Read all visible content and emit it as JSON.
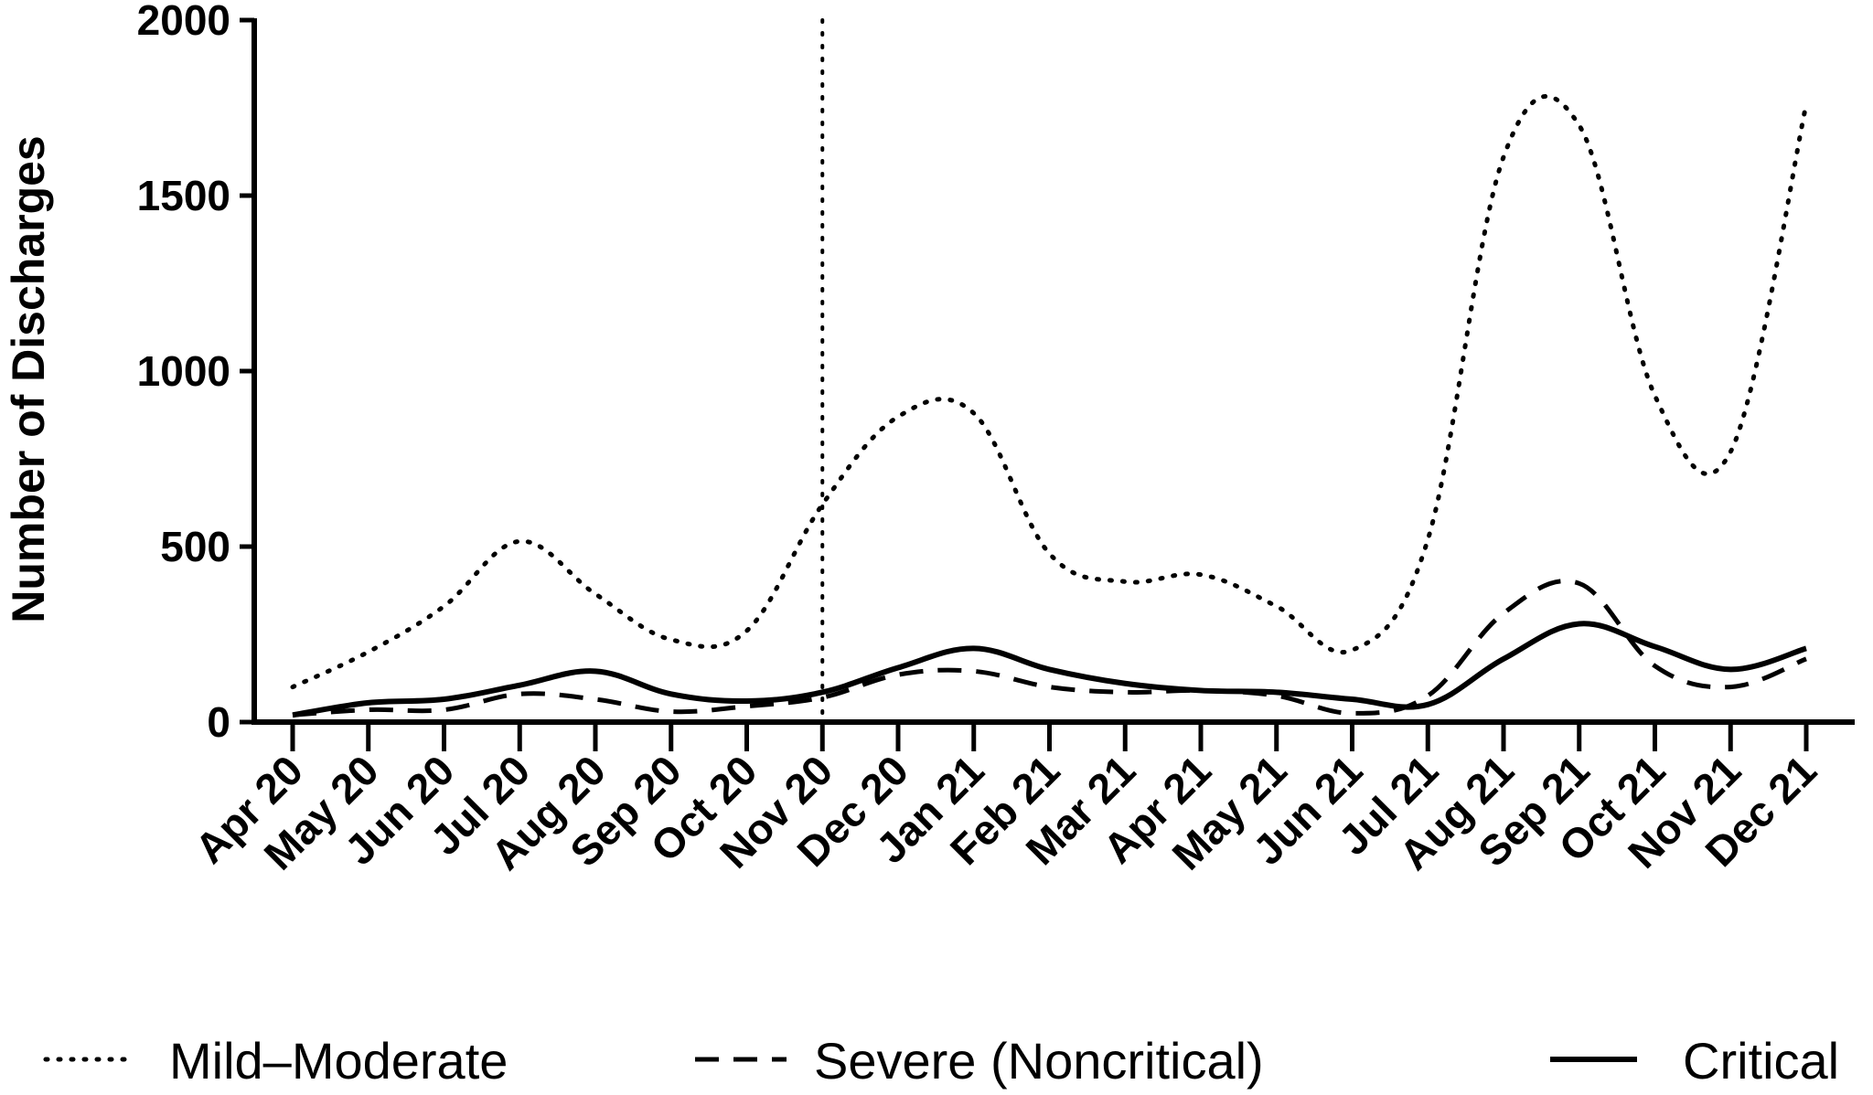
{
  "chart_data": {
    "type": "line",
    "ylabel": "Number of Discharges",
    "xlabel": "",
    "ylim": [
      0,
      2000
    ],
    "yticks": [
      0,
      500,
      1000,
      1500,
      2000
    ],
    "categories": [
      "Apr 20",
      "May 20",
      "Jun 20",
      "Jul 20",
      "Aug 20",
      "Sep 20",
      "Oct 20",
      "Nov 20",
      "Dec 20",
      "Jan 21",
      "Feb 21",
      "Mar 21",
      "Apr 21",
      "May 21",
      "Jun 21",
      "Jul 21",
      "Aug 21",
      "Sep 21",
      "Oct 21",
      "Nov 21",
      "Dec 21"
    ],
    "reference_line": {
      "category": "Nov 20",
      "style": "dotted"
    },
    "grid": false,
    "legend_position": "bottom",
    "series": [
      {
        "name": "Mild–Moderate",
        "style": "dotted",
        "values": [
          100,
          200,
          330,
          515,
          365,
          235,
          260,
          620,
          870,
          880,
          480,
          400,
          420,
          330,
          205,
          520,
          1610,
          1700,
          930,
          770,
          1760
        ]
      },
      {
        "name": "Severe (Noncritical)",
        "style": "dashed",
        "values": [
          20,
          35,
          35,
          80,
          65,
          30,
          45,
          70,
          135,
          145,
          100,
          85,
          90,
          75,
          25,
          75,
          310,
          395,
          160,
          100,
          180
        ]
      },
      {
        "name": "Critical",
        "style": "solid",
        "values": [
          20,
          55,
          65,
          105,
          145,
          80,
          60,
          85,
          155,
          210,
          150,
          110,
          90,
          85,
          65,
          50,
          180,
          280,
          215,
          150,
          210
        ]
      }
    ]
  }
}
